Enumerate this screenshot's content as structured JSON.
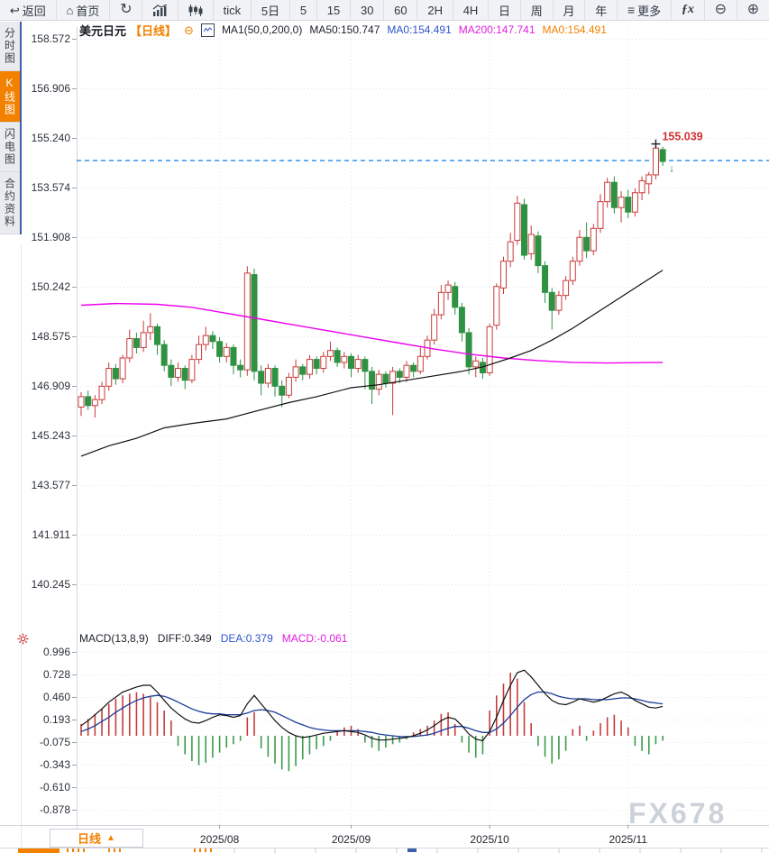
{
  "toolbar": {
    "items": [
      {
        "icon": "back-arrow-icon",
        "label": "返回"
      },
      {
        "icon": "home-icon",
        "label": "首页"
      },
      {
        "icon": "refresh-icon",
        "label": ""
      },
      {
        "icon": "area-chart-icon",
        "label": ""
      },
      {
        "icon": "candlestick-icon",
        "label": ""
      },
      {
        "icon": "",
        "label": "tick"
      },
      {
        "icon": "",
        "label": "5日"
      },
      {
        "icon": "",
        "label": "5"
      },
      {
        "icon": "",
        "label": "15"
      },
      {
        "icon": "",
        "label": "30"
      },
      {
        "icon": "",
        "label": "60"
      },
      {
        "icon": "",
        "label": "2H"
      },
      {
        "icon": "",
        "label": "4H"
      },
      {
        "icon": "",
        "label": "日"
      },
      {
        "icon": "",
        "label": "周"
      },
      {
        "icon": "",
        "label": "月"
      },
      {
        "icon": "",
        "label": "年"
      },
      {
        "icon": "menu-icon",
        "label": "更多"
      },
      {
        "icon": "fx-icon",
        "label": ""
      },
      {
        "icon": "zoom-out-icon",
        "label": ""
      },
      {
        "icon": "zoom-in-icon",
        "label": ""
      }
    ]
  },
  "sidebar": {
    "items": [
      {
        "label": "分时图",
        "active": false
      },
      {
        "label": "K线图",
        "active": true
      },
      {
        "label": "闪电图",
        "active": false
      },
      {
        "label": "合约资料",
        "active": false
      }
    ]
  },
  "chart_header": {
    "symbol": "美元日元",
    "period": "【日线】",
    "collapse_glyph": "⊖",
    "ma_settings": "MA1(50,0,200,0)",
    "ma50": "MA50:150.747",
    "ma0_blue": "MA0:154.491",
    "ma200": "MA200:147.741",
    "ma0_orange": "MA0:154.491"
  },
  "macd_header": {
    "title": "MACD(13,8,9)",
    "diff": "DIFF:0.349",
    "dea": "DEA:0.379",
    "macd": "MACD:-0.061"
  },
  "bottom": {
    "tab_label": "日线",
    "tab_arrow": "▲"
  },
  "watermark": "FX678",
  "chart_data": {
    "type": "candlestick",
    "title": "美元日元 日线",
    "price_axis_ticks": [
      "158.572",
      "156.906",
      "155.240",
      "153.574",
      "151.908",
      "150.242",
      "148.575",
      "146.909",
      "145.243",
      "143.577",
      "141.911",
      "140.245"
    ],
    "macd_axis_ticks": [
      "0.996",
      "0.728",
      "0.460",
      "0.193",
      "-0.075",
      "-0.343",
      "-0.610",
      "-0.878"
    ],
    "x_axis_months": [
      {
        "label": "2025/08",
        "index": 20
      },
      {
        "label": "2025/09",
        "index": 39
      },
      {
        "label": "2025/10",
        "index": 59
      },
      {
        "label": "2025/11",
        "index": 79
      }
    ],
    "current_price_line": 154.48,
    "high_annotation": {
      "label": "155.039",
      "index": 83,
      "price": 155.039
    },
    "last_candle_marker": "↓",
    "candles": [
      [
        146.2,
        146.7,
        145.9,
        146.55
      ],
      [
        146.55,
        146.75,
        146.1,
        146.25
      ],
      [
        146.25,
        146.6,
        145.85,
        146.45
      ],
      [
        146.45,
        147.05,
        146.3,
        146.9
      ],
      [
        146.9,
        147.7,
        146.75,
        147.5
      ],
      [
        147.5,
        147.65,
        146.95,
        147.15
      ],
      [
        147.15,
        147.95,
        147.0,
        147.85
      ],
      [
        147.85,
        148.8,
        147.7,
        148.5
      ],
      [
        148.5,
        148.7,
        148.0,
        148.2
      ],
      [
        148.2,
        149.1,
        148.05,
        148.7
      ],
      [
        148.7,
        149.35,
        148.45,
        148.9
      ],
      [
        148.9,
        149.0,
        147.95,
        148.3
      ],
      [
        148.3,
        148.45,
        147.4,
        147.6
      ],
      [
        147.6,
        147.8,
        146.9,
        147.2
      ],
      [
        147.2,
        147.7,
        147.05,
        147.5
      ],
      [
        147.5,
        147.6,
        146.8,
        147.1
      ],
      [
        147.1,
        147.95,
        147.0,
        147.8
      ],
      [
        147.8,
        148.6,
        147.65,
        148.3
      ],
      [
        148.3,
        148.9,
        148.1,
        148.6
      ],
      [
        148.6,
        148.75,
        148.15,
        148.4
      ],
      [
        148.4,
        148.55,
        147.7,
        147.9
      ],
      [
        147.9,
        148.35,
        147.7,
        148.2
      ],
      [
        148.2,
        148.3,
        147.3,
        147.6
      ],
      [
        147.6,
        147.8,
        147.2,
        147.45
      ],
      [
        147.45,
        150.93,
        147.25,
        150.7
      ],
      [
        150.65,
        150.85,
        147.1,
        147.4
      ],
      [
        147.4,
        147.6,
        146.6,
        147.0
      ],
      [
        147.0,
        147.65,
        146.85,
        147.5
      ],
      [
        147.5,
        147.6,
        146.55,
        146.9
      ],
      [
        146.9,
        147.1,
        146.2,
        146.6
      ],
      [
        146.6,
        147.35,
        146.5,
        147.2
      ],
      [
        147.2,
        147.8,
        147.05,
        147.55
      ],
      [
        147.55,
        147.65,
        147.1,
        147.3
      ],
      [
        147.3,
        147.95,
        147.15,
        147.8
      ],
      [
        147.8,
        147.9,
        147.3,
        147.5
      ],
      [
        147.5,
        148.05,
        147.35,
        147.9
      ],
      [
        147.9,
        148.4,
        147.75,
        148.1
      ],
      [
        148.1,
        148.2,
        147.55,
        147.7
      ],
      [
        147.7,
        148.05,
        147.5,
        147.9
      ],
      [
        147.9,
        148.0,
        147.2,
        147.5
      ],
      [
        147.5,
        147.95,
        147.35,
        147.8
      ],
      [
        147.8,
        147.9,
        146.8,
        147.4
      ],
      [
        147.4,
        147.55,
        146.3,
        146.8
      ],
      [
        146.8,
        147.45,
        146.6,
        147.3
      ],
      [
        147.3,
        147.4,
        146.85,
        147.0
      ],
      [
        147.0,
        147.55,
        145.93,
        147.4
      ],
      [
        147.4,
        147.5,
        147.0,
        147.2
      ],
      [
        147.2,
        147.75,
        147.05,
        147.6
      ],
      [
        147.6,
        147.7,
        147.2,
        147.4
      ],
      [
        147.4,
        148.2,
        147.3,
        147.9
      ],
      [
        147.9,
        148.6,
        147.8,
        148.45
      ],
      [
        148.45,
        149.5,
        148.3,
        149.3
      ],
      [
        149.3,
        150.3,
        149.15,
        150.05
      ],
      [
        150.05,
        150.45,
        149.8,
        150.3
      ],
      [
        150.25,
        150.4,
        149.3,
        149.55
      ],
      [
        149.55,
        149.7,
        148.4,
        148.7
      ],
      [
        148.7,
        148.85,
        147.3,
        147.55
      ],
      [
        147.55,
        147.9,
        147.2,
        147.75
      ],
      [
        147.7,
        147.85,
        147.15,
        147.35
      ],
      [
        147.35,
        149.0,
        147.25,
        148.9
      ],
      [
        148.95,
        150.35,
        148.8,
        150.25
      ],
      [
        150.2,
        151.25,
        150.0,
        151.1
      ],
      [
        151.1,
        152.05,
        150.9,
        151.75
      ],
      [
        151.8,
        153.3,
        151.65,
        153.05
      ],
      [
        153.0,
        153.2,
        151.15,
        151.3
      ],
      [
        151.35,
        152.3,
        151.15,
        152.0
      ],
      [
        151.95,
        152.1,
        150.7,
        150.95
      ],
      [
        150.95,
        151.1,
        149.7,
        150.05
      ],
      [
        150.05,
        150.2,
        148.8,
        149.45
      ],
      [
        149.45,
        150.1,
        149.3,
        149.95
      ],
      [
        149.95,
        150.6,
        149.8,
        150.45
      ],
      [
        150.45,
        151.25,
        150.3,
        151.1
      ],
      [
        151.1,
        152.15,
        150.95,
        151.9
      ],
      [
        151.9,
        152.4,
        151.2,
        151.45
      ],
      [
        151.45,
        152.35,
        151.3,
        152.2
      ],
      [
        152.2,
        153.35,
        152.05,
        153.1
      ],
      [
        153.1,
        153.9,
        152.9,
        153.75
      ],
      [
        153.75,
        153.95,
        152.7,
        152.9
      ],
      [
        152.9,
        153.45,
        152.4,
        153.25
      ],
      [
        153.25,
        153.5,
        152.55,
        152.75
      ],
      [
        152.75,
        153.55,
        152.6,
        153.4
      ],
      [
        153.4,
        153.95,
        153.15,
        153.8
      ],
      [
        153.7,
        154.1,
        153.35,
        154.0
      ],
      [
        154.0,
        155.039,
        153.85,
        154.9
      ],
      [
        154.85,
        154.95,
        154.3,
        154.45
      ]
    ],
    "ma50_anchors": [
      [
        0,
        144.55
      ],
      [
        4,
        144.9
      ],
      [
        8,
        145.15
      ],
      [
        12,
        145.5
      ],
      [
        16,
        145.65
      ],
      [
        21,
        145.8
      ],
      [
        25,
        146.05
      ],
      [
        30,
        146.35
      ],
      [
        34,
        146.55
      ],
      [
        39,
        146.85
      ],
      [
        43,
        146.95
      ],
      [
        47,
        147.1
      ],
      [
        51,
        147.25
      ],
      [
        55,
        147.4
      ],
      [
        58,
        147.55
      ],
      [
        62,
        147.85
      ],
      [
        65,
        148.1
      ],
      [
        68,
        148.45
      ],
      [
        71,
        148.85
      ],
      [
        74,
        149.3
      ],
      [
        77,
        149.75
      ],
      [
        80,
        150.2
      ],
      [
        84,
        150.8
      ]
    ],
    "ma200_anchors": [
      [
        0,
        149.62
      ],
      [
        5,
        149.68
      ],
      [
        11,
        149.65
      ],
      [
        16,
        149.55
      ],
      [
        21,
        149.35
      ],
      [
        26,
        149.15
      ],
      [
        31,
        148.95
      ],
      [
        36,
        148.75
      ],
      [
        41,
        148.55
      ],
      [
        46,
        148.35
      ],
      [
        51,
        148.15
      ],
      [
        56,
        147.98
      ],
      [
        61,
        147.85
      ],
      [
        66,
        147.76
      ],
      [
        71,
        147.7
      ],
      [
        76,
        147.68
      ],
      [
        84,
        147.7
      ]
    ],
    "macd": {
      "hist": [
        0.14,
        0.2,
        0.26,
        0.32,
        0.38,
        0.44,
        0.48,
        0.5,
        0.52,
        0.5,
        0.46,
        0.4,
        0.3,
        0.18,
        -0.12,
        -0.22,
        -0.3,
        -0.35,
        -0.32,
        -0.26,
        -0.2,
        -0.14,
        -0.1,
        -0.06,
        0.22,
        0.28,
        -0.15,
        -0.25,
        -0.33,
        -0.4,
        -0.42,
        -0.36,
        -0.28,
        -0.22,
        -0.16,
        -0.12,
        -0.06,
        0.05,
        0.1,
        0.12,
        0.08,
        -0.08,
        -0.14,
        -0.18,
        -0.14,
        -0.1,
        -0.08,
        -0.04,
        0.04,
        0.08,
        0.12,
        0.18,
        0.26,
        0.28,
        0.14,
        -0.08,
        -0.2,
        -0.26,
        -0.22,
        0.3,
        0.48,
        0.62,
        0.75,
        0.68,
        0.4,
        0.15,
        -0.12,
        -0.25,
        -0.33,
        -0.28,
        -0.18,
        0.08,
        0.12,
        -0.06,
        0.06,
        0.15,
        0.22,
        0.25,
        0.18,
        0.1,
        -0.12,
        -0.18,
        -0.22,
        -0.1,
        -0.06
      ],
      "diff": [
        0.12,
        0.18,
        0.25,
        0.32,
        0.4,
        0.46,
        0.52,
        0.55,
        0.58,
        0.6,
        0.6,
        0.52,
        0.42,
        0.33,
        0.26,
        0.2,
        0.16,
        0.15,
        0.18,
        0.22,
        0.25,
        0.24,
        0.22,
        0.24,
        0.38,
        0.48,
        0.38,
        0.28,
        0.18,
        0.1,
        0.04,
        0.0,
        -0.02,
        -0.01,
        0.01,
        0.03,
        0.04,
        0.05,
        0.06,
        0.05,
        0.04,
        0.01,
        -0.03,
        -0.05,
        -0.05,
        -0.04,
        -0.03,
        -0.02,
        0.0,
        0.03,
        0.07,
        0.12,
        0.18,
        0.22,
        0.2,
        0.12,
        0.02,
        -0.04,
        -0.06,
        0.05,
        0.22,
        0.42,
        0.6,
        0.75,
        0.78,
        0.7,
        0.6,
        0.5,
        0.42,
        0.38,
        0.37,
        0.4,
        0.44,
        0.42,
        0.4,
        0.42,
        0.46,
        0.5,
        0.52,
        0.48,
        0.42,
        0.38,
        0.34,
        0.33,
        0.349
      ],
      "dea": [
        0.05,
        0.08,
        0.12,
        0.17,
        0.22,
        0.28,
        0.33,
        0.38,
        0.42,
        0.45,
        0.47,
        0.48,
        0.47,
        0.44,
        0.4,
        0.36,
        0.32,
        0.29,
        0.27,
        0.26,
        0.26,
        0.25,
        0.25,
        0.25,
        0.27,
        0.3,
        0.31,
        0.3,
        0.28,
        0.24,
        0.2,
        0.16,
        0.13,
        0.1,
        0.08,
        0.07,
        0.06,
        0.06,
        0.06,
        0.06,
        0.06,
        0.05,
        0.04,
        0.02,
        0.01,
        0.0,
        -0.01,
        -0.01,
        -0.01,
        0.0,
        0.01,
        0.03,
        0.06,
        0.09,
        0.11,
        0.11,
        0.09,
        0.06,
        0.04,
        0.04,
        0.08,
        0.15,
        0.24,
        0.34,
        0.43,
        0.49,
        0.52,
        0.52,
        0.5,
        0.47,
        0.45,
        0.44,
        0.44,
        0.44,
        0.43,
        0.43,
        0.43,
        0.44,
        0.45,
        0.45,
        0.44,
        0.42,
        0.4,
        0.39,
        0.379
      ]
    },
    "colors": {
      "up": "#cb3a3a",
      "down": "#2f9142",
      "ma50": "#111111",
      "ma200": "#ee00ee",
      "diff": "#111111",
      "dea": "#1a3d99",
      "price_line": "#1e87e5",
      "annotation": "#d32f2f",
      "accent_orange": "#f28100",
      "grid": "#e4e7eb",
      "axis_text": "#2b313a"
    }
  }
}
